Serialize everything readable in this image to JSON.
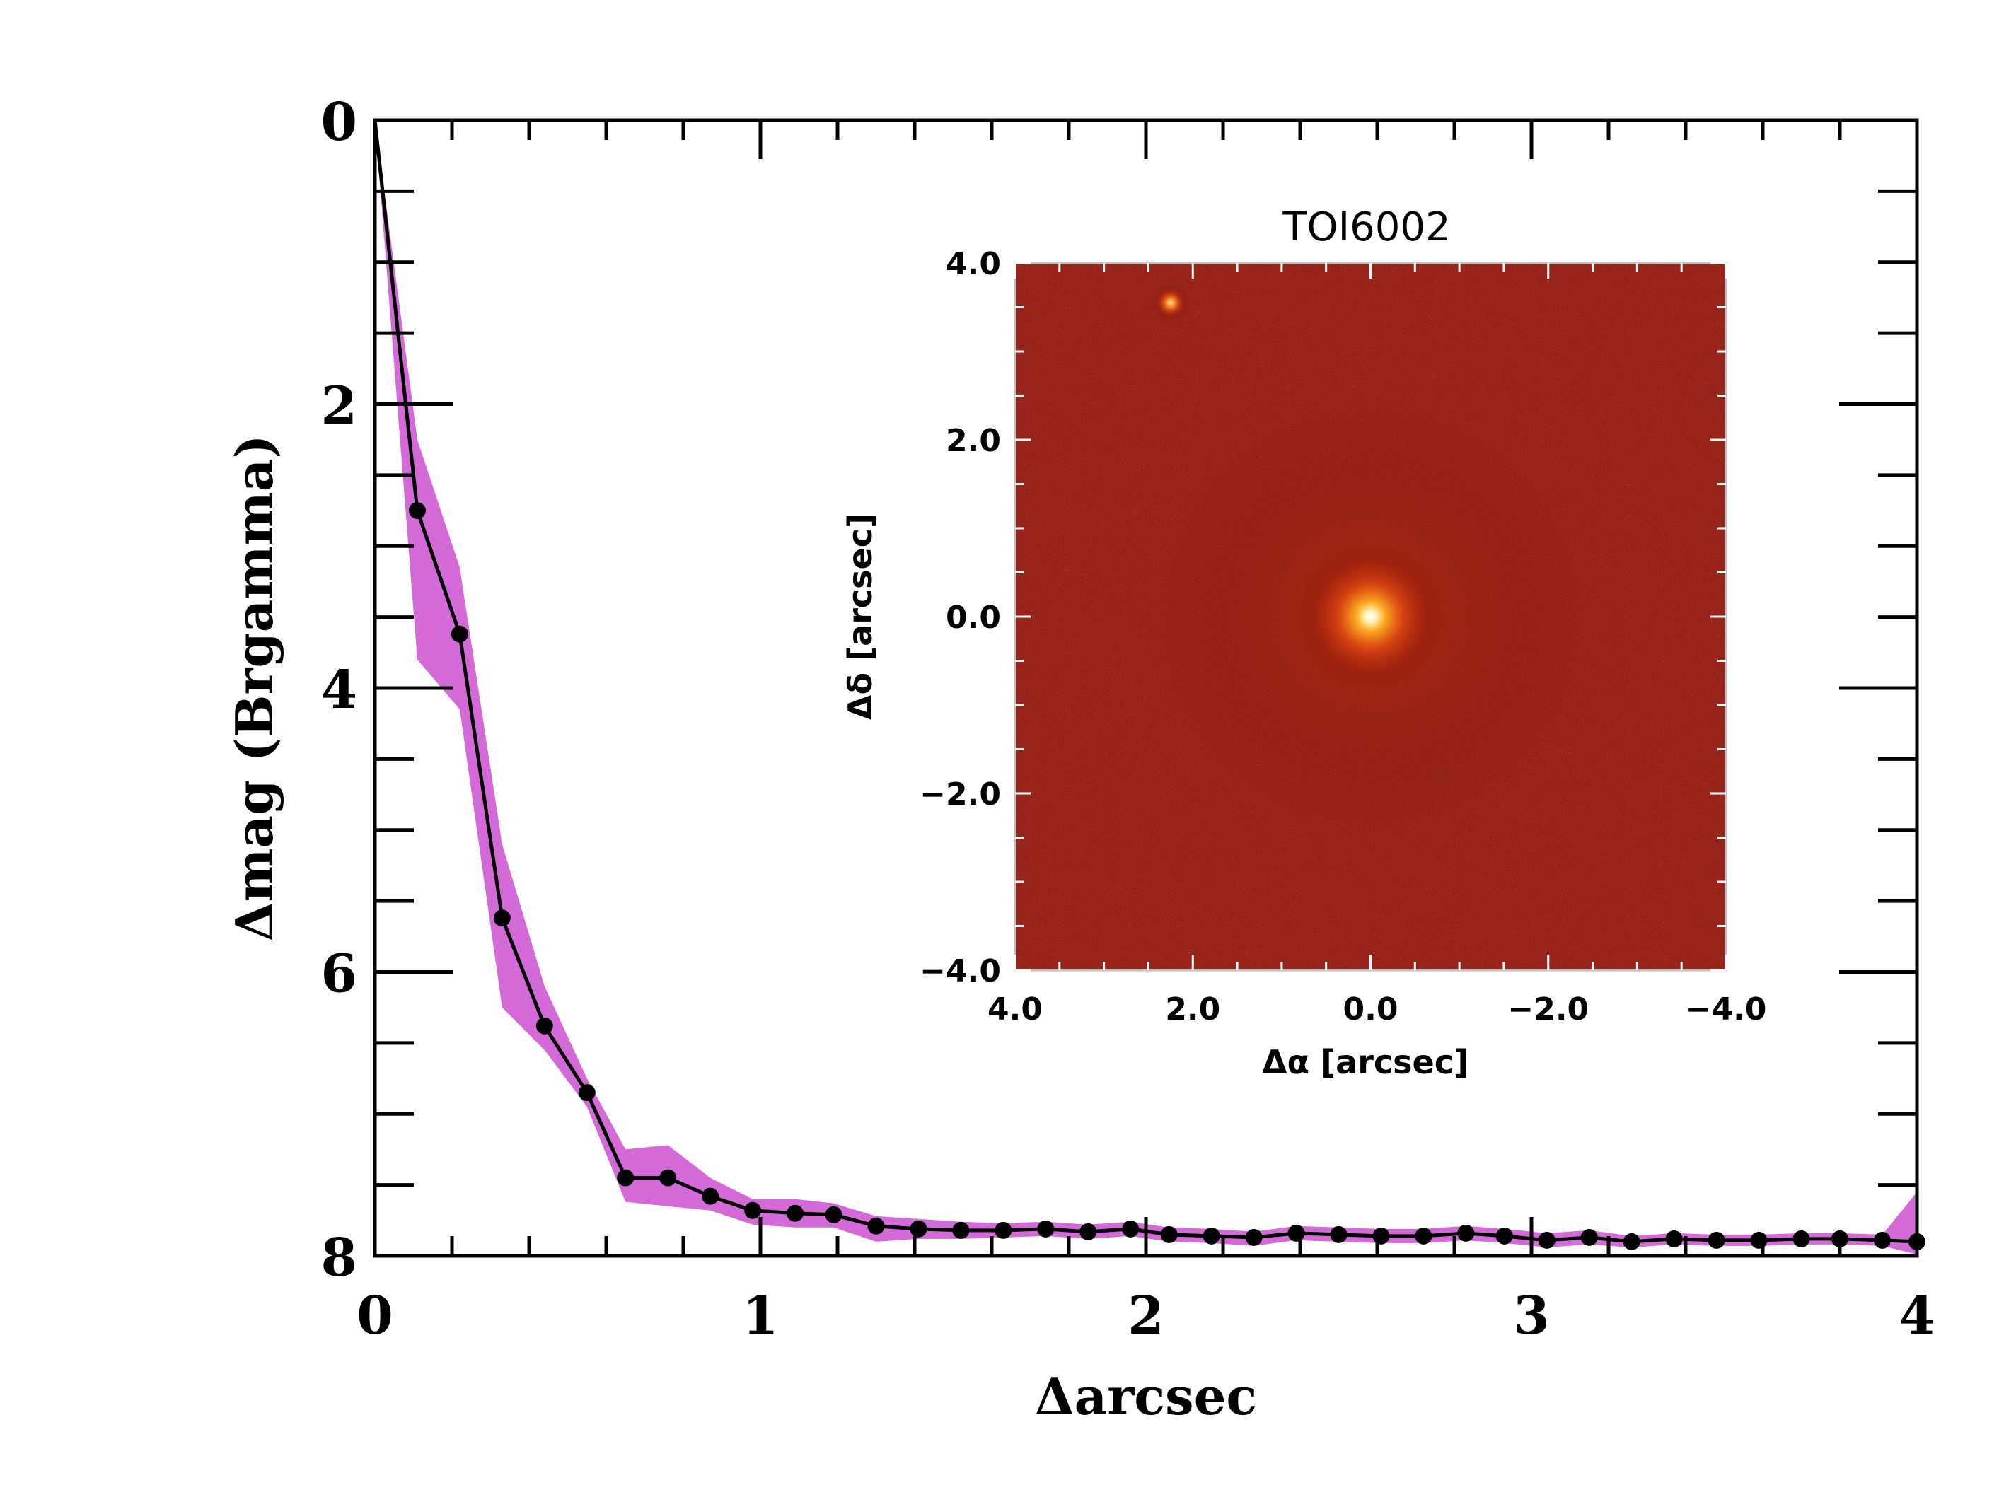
{
  "chart_data": [
    {
      "type": "line",
      "title": "",
      "xlabel": "Δarcsec",
      "ylabel": "Δmag (Brgamma)",
      "xlim": [
        0,
        4
      ],
      "ylim": [
        8,
        0
      ],
      "y_inverted": true,
      "x_ticks": [
        "0",
        "1",
        "2",
        "3",
        "4"
      ],
      "y_ticks": [
        "0",
        "2",
        "4",
        "6",
        "8"
      ],
      "grid": false,
      "legend": "none",
      "colors": {
        "band": "#d469d8",
        "line": "#000000"
      },
      "series": [
        {
          "x": [
            0.0,
            0.11,
            0.22,
            0.33,
            0.44,
            0.55,
            0.65,
            0.76,
            0.87,
            0.98,
            1.09,
            1.19,
            1.3,
            1.41,
            1.52,
            1.63,
            1.74,
            1.85,
            1.96,
            2.06,
            2.17,
            2.28,
            2.39,
            2.5,
            2.61,
            2.72,
            2.83,
            2.93,
            3.04,
            3.15,
            3.26,
            3.37,
            3.48,
            3.59,
            3.7,
            3.8,
            3.91,
            4.0
          ],
          "y": [
            0.0,
            2.75,
            3.62,
            5.62,
            6.38,
            6.85,
            7.45,
            7.45,
            7.58,
            7.68,
            7.7,
            7.71,
            7.79,
            7.81,
            7.82,
            7.82,
            7.81,
            7.83,
            7.81,
            7.85,
            7.86,
            7.87,
            7.84,
            7.85,
            7.86,
            7.86,
            7.84,
            7.86,
            7.89,
            7.87,
            7.9,
            7.88,
            7.89,
            7.89,
            7.88,
            7.88,
            7.89,
            7.9
          ],
          "y_lower": [
            0.0,
            2.25,
            3.15,
            5.1,
            6.1,
            6.75,
            7.25,
            7.22,
            7.45,
            7.6,
            7.6,
            7.63,
            7.72,
            7.74,
            7.76,
            7.77,
            7.76,
            7.78,
            7.76,
            7.8,
            7.81,
            7.83,
            7.79,
            7.8,
            7.81,
            7.81,
            7.79,
            7.81,
            7.84,
            7.82,
            7.86,
            7.84,
            7.85,
            7.85,
            7.84,
            7.84,
            7.85,
            7.55
          ],
          "y_upper": [
            0.0,
            3.8,
            4.15,
            6.25,
            6.55,
            6.95,
            7.62,
            7.65,
            7.68,
            7.78,
            7.8,
            7.8,
            7.9,
            7.88,
            7.88,
            7.87,
            7.86,
            7.88,
            7.86,
            7.9,
            7.91,
            7.93,
            7.89,
            7.9,
            7.91,
            7.91,
            7.89,
            7.91,
            7.94,
            7.92,
            7.94,
            7.92,
            7.93,
            7.93,
            7.92,
            7.92,
            7.93,
            7.99
          ]
        }
      ]
    },
    {
      "type": "heatmap",
      "title": "TOI6002",
      "xlabel": "Δα [arcsec]",
      "ylabel": "Δδ [arcsec]",
      "xlim": [
        4.0,
        -4.0
      ],
      "ylim": [
        -4.0,
        4.0
      ],
      "x_ticks": [
        "4.0",
        "2.0",
        "0.0",
        "−2.0",
        "−4.0"
      ],
      "y_ticks": [
        "−4.0",
        "−2.0",
        "0.0",
        "2.0",
        "4.0"
      ],
      "colormap": "red-hot",
      "sources": [
        {
          "x": 0.0,
          "y": 0.0,
          "relative_brightness": 1.0
        },
        {
          "x": 2.25,
          "y": 3.55,
          "relative_brightness": 0.35
        }
      ]
    }
  ]
}
